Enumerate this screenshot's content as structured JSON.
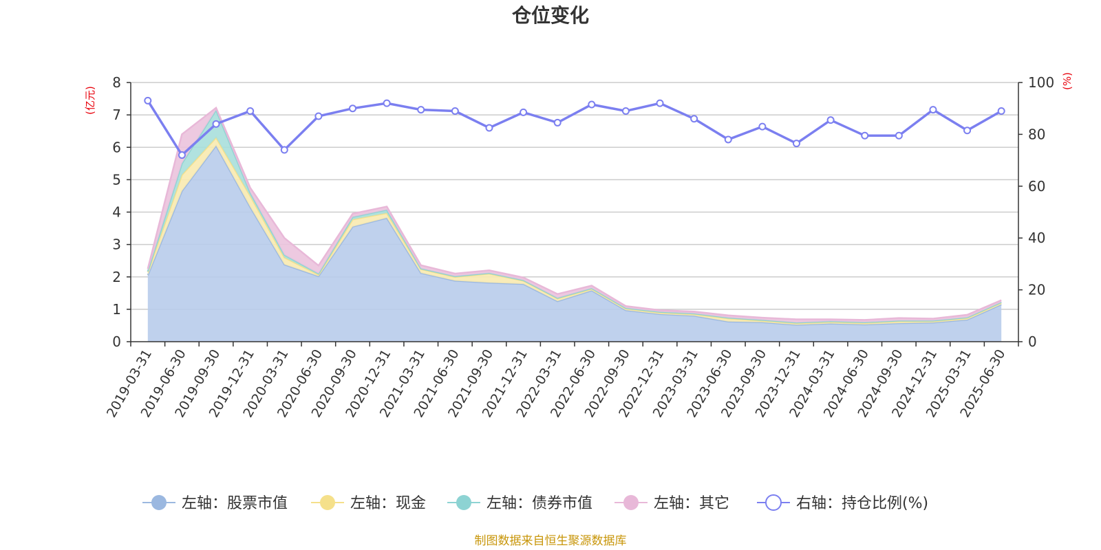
{
  "chart_data": {
    "type": "area",
    "title": "仓位变化",
    "source": "制图数据来自恒生聚源数据库",
    "y_left_unit": "(亿元)",
    "y_right_unit": "(%)",
    "y_left_range": [
      0,
      8
    ],
    "y_left_ticks": [
      "0",
      "1",
      "2",
      "3",
      "4",
      "5",
      "6",
      "7",
      "8"
    ],
    "y_right_range": [
      0,
      100
    ],
    "y_right_ticks": [
      "0",
      "20",
      "40",
      "60",
      "80",
      "100"
    ],
    "grid": true,
    "legend_position": "bottom",
    "categories": [
      "2019-03-31",
      "2019-06-30",
      "2019-09-30",
      "2019-12-31",
      "2020-03-31",
      "2020-06-30",
      "2020-09-30",
      "2020-12-31",
      "2021-03-31",
      "2021-06-30",
      "2021-09-30",
      "2021-12-31",
      "2022-03-31",
      "2022-06-30",
      "2022-09-30",
      "2022-12-31",
      "2023-03-31",
      "2023-06-30",
      "2023-09-30",
      "2023-12-31",
      "2024-03-31",
      "2024-06-30",
      "2024-09-30",
      "2024-12-31",
      "2025-03-31",
      "2025-06-30"
    ],
    "series": [
      {
        "name": "左轴：股票市值",
        "axis": "left",
        "stack": true,
        "color": "#9bb8e0",
        "fill": "#b8cceb",
        "values": [
          2.05,
          4.65,
          6.05,
          4.15,
          2.38,
          2.02,
          3.55,
          3.82,
          2.12,
          1.88,
          1.82,
          1.78,
          1.25,
          1.58,
          0.97,
          0.85,
          0.8,
          0.62,
          0.6,
          0.52,
          0.56,
          0.53,
          0.57,
          0.59,
          0.68,
          1.15
        ]
      },
      {
        "name": "左轴：现金",
        "axis": "left",
        "stack": true,
        "color": "#f5e08a",
        "fill": "#f8eab0",
        "values": [
          0.1,
          0.5,
          0.25,
          0.35,
          0.22,
          0.05,
          0.22,
          0.15,
          0.12,
          0.12,
          0.28,
          0.1,
          0.08,
          0.05,
          0.05,
          0.05,
          0.05,
          0.1,
          0.05,
          0.05,
          0.05,
          0.05,
          0.06,
          0.04,
          0.05,
          0.05
        ]
      },
      {
        "name": "左轴：债券市值",
        "axis": "left",
        "stack": true,
        "color": "#8dd3d3",
        "fill": "#a8dfdc",
        "values": [
          0.02,
          0.35,
          0.85,
          0.1,
          0.08,
          0.03,
          0.08,
          0.1,
          0.02,
          0.02,
          0.02,
          0.02,
          0.02,
          0.02,
          0.02,
          0.02,
          0.02,
          0.02,
          0.02,
          0.02,
          0.02,
          0.02,
          0.02,
          0.02,
          0.02,
          0.02
        ]
      },
      {
        "name": "左轴：其它",
        "axis": "left",
        "stack": true,
        "color": "#e8b8d8",
        "fill": "#ebc3dd",
        "values": [
          0.08,
          0.9,
          0.07,
          0.15,
          0.52,
          0.25,
          0.1,
          0.1,
          0.1,
          0.08,
          0.08,
          0.08,
          0.12,
          0.08,
          0.06,
          0.05,
          0.06,
          0.07,
          0.07,
          0.1,
          0.06,
          0.07,
          0.08,
          0.06,
          0.08,
          0.06
        ]
      },
      {
        "name": "右轴：持仓比例(%)",
        "axis": "right",
        "type": "line",
        "color": "#7b7ff0",
        "values": [
          93,
          72,
          84,
          89,
          74,
          87,
          90,
          92,
          89.5,
          89,
          82.5,
          88.5,
          84.5,
          91.5,
          89,
          92,
          86,
          78,
          83,
          76.5,
          85.5,
          79.5,
          79.5,
          89.5,
          81.5,
          89
        ]
      }
    ]
  }
}
